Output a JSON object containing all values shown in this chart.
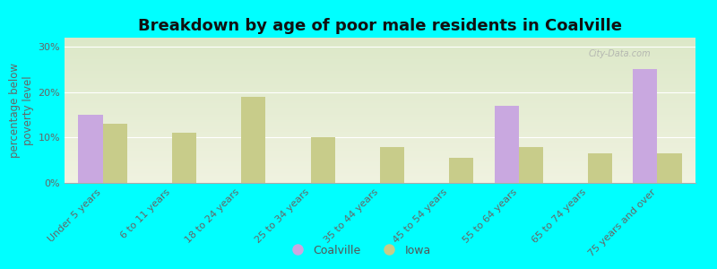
{
  "title": "Breakdown by age of poor male residents in Coalville",
  "ylabel": "percentage below\npoverty level",
  "categories": [
    "Under 5 years",
    "6 to 11 years",
    "18 to 24 years",
    "25 to 34 years",
    "35 to 44 years",
    "45 to 54 years",
    "55 to 64 years",
    "65 to 74 years",
    "75 years and over"
  ],
  "coalville": [
    15,
    0,
    0,
    0,
    0,
    0,
    17,
    0,
    25
  ],
  "iowa": [
    13,
    11,
    19,
    10,
    8,
    5.5,
    8,
    6.5,
    6.5
  ],
  "coalville_color": "#c9a8e0",
  "iowa_color": "#c8cc8a",
  "background_color": "#00ffff",
  "plot_bg_top": "#dce8c8",
  "plot_bg_bottom": "#f0f2e0",
  "ylim": [
    0,
    32
  ],
  "yticks": [
    0,
    10,
    20,
    30
  ],
  "ytick_labels": [
    "0%",
    "10%",
    "20%",
    "30%"
  ],
  "bar_width": 0.35,
  "title_fontsize": 13,
  "axis_label_fontsize": 8.5,
  "tick_fontsize": 8,
  "legend_fontsize": 9,
  "watermark": "City-Data.com"
}
